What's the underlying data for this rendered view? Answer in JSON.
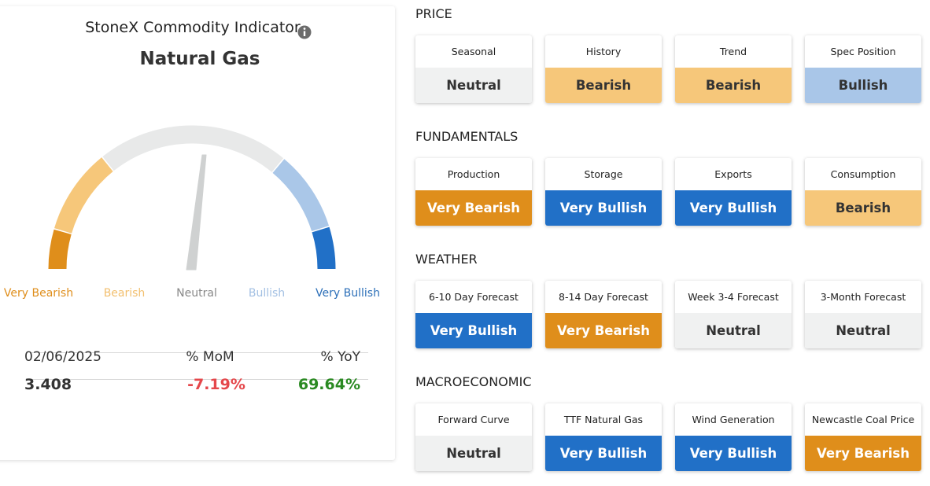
{
  "header": {
    "title": "StoneX Commodity Indicator",
    "commodity": "Natural Gas"
  },
  "gauge": {
    "labels": [
      "Very Bearish",
      "Bearish",
      "Neutral",
      "Bullish",
      "Very Bullish"
    ]
  },
  "stats": {
    "date": "02/06/2025",
    "mom_header": "% MoM",
    "yoy_header": "% YoY",
    "price": "3.408",
    "mom": "-7.19%",
    "yoy": "69.64%"
  },
  "sections": [
    {
      "title": "PRICE",
      "cards": [
        {
          "label": "Seasonal",
          "status": "Neutral"
        },
        {
          "label": "History",
          "status": "Bearish"
        },
        {
          "label": "Trend",
          "status": "Bearish"
        },
        {
          "label": "Spec Position",
          "status": "Bullish"
        }
      ]
    },
    {
      "title": "FUNDAMENTALS",
      "cards": [
        {
          "label": "Production",
          "status": "Very Bearish"
        },
        {
          "label": "Storage",
          "status": "Very Bullish"
        },
        {
          "label": "Exports",
          "status": "Very Bullish"
        },
        {
          "label": "Consumption",
          "status": "Bearish"
        }
      ]
    },
    {
      "title": "WEATHER",
      "cards": [
        {
          "label": "6-10 Day Forecast",
          "status": "Very Bullish"
        },
        {
          "label": "8-14 Day Forecast",
          "status": "Very Bearish"
        },
        {
          "label": "Week 3-4 Forecast",
          "status": "Neutral"
        },
        {
          "label": "3-Month Forecast",
          "status": "Neutral"
        }
      ]
    },
    {
      "title": "MACROECONOMIC",
      "cards": [
        {
          "label": "Forward Curve",
          "status": "Neutral"
        },
        {
          "label": "TTF Natural Gas",
          "status": "Very Bullish"
        },
        {
          "label": "Wind Generation",
          "status": "Very Bullish"
        },
        {
          "label": "Newcastle Coal Price",
          "status": "Very Bearish"
        }
      ]
    }
  ]
}
